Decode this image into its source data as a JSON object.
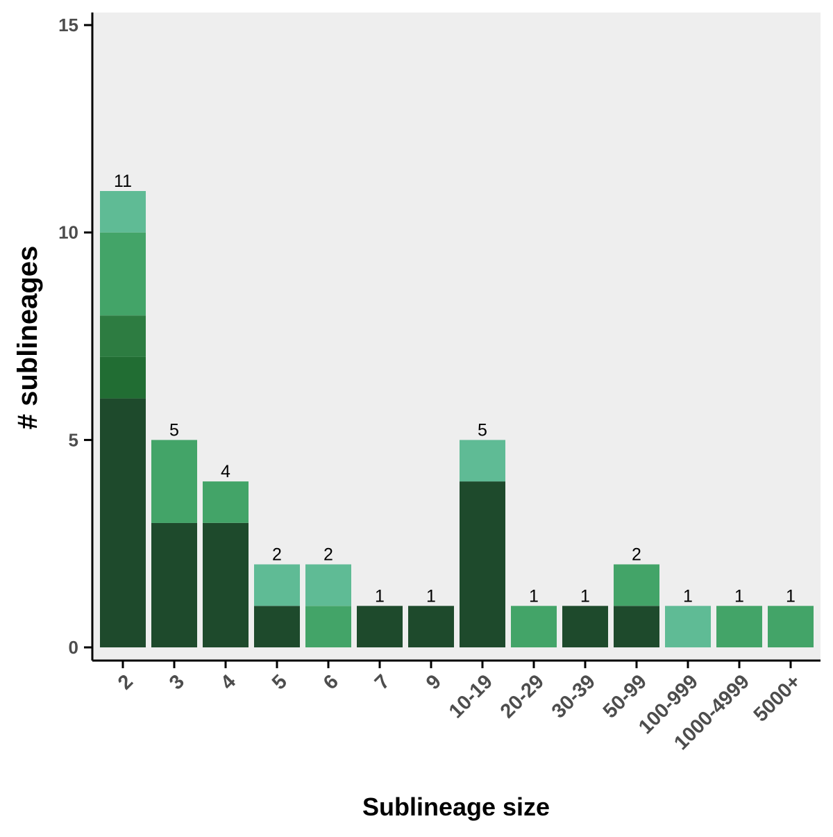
{
  "chart_data": {
    "type": "bar",
    "stacked": true,
    "title": "",
    "xlabel": "Sublineage size",
    "ylabel": "# sublineages",
    "ylim": [
      0,
      15
    ],
    "yticks": [
      0,
      5,
      10,
      15
    ],
    "grid": false,
    "legend": "none",
    "categories": [
      "2",
      "3",
      "4",
      "5",
      "6",
      "7",
      "9",
      "10-19",
      "20-29",
      "30-39",
      "50-99",
      "100-999",
      "1000-4999",
      "5000+"
    ],
    "totals": [
      11,
      5,
      4,
      2,
      2,
      1,
      1,
      5,
      1,
      1,
      2,
      1,
      1,
      1
    ],
    "series": [
      {
        "color": "#1e4a2c",
        "values": [
          6,
          3,
          3,
          1,
          0,
          1,
          1,
          4,
          0,
          1,
          1,
          0,
          0,
          0
        ]
      },
      {
        "color": "#216d33",
        "values": [
          1,
          0,
          0,
          0,
          0,
          0,
          0,
          0,
          0,
          0,
          0,
          0,
          0,
          0
        ]
      },
      {
        "color": "#2d7c41",
        "values": [
          1,
          0,
          0,
          0,
          0,
          0,
          0,
          0,
          0,
          0,
          0,
          0,
          0,
          0
        ]
      },
      {
        "color": "#43a468",
        "values": [
          2,
          2,
          1,
          0,
          1,
          0,
          0,
          0,
          1,
          0,
          1,
          0,
          1,
          1
        ]
      },
      {
        "color": "#5fbb95",
        "values": [
          1,
          0,
          0,
          1,
          1,
          0,
          0,
          1,
          0,
          0,
          0,
          1,
          0,
          0
        ]
      }
    ],
    "colors": {
      "panel": "#eeeeee",
      "axis": "#000000",
      "tick_text": "#4d4d4d"
    }
  }
}
